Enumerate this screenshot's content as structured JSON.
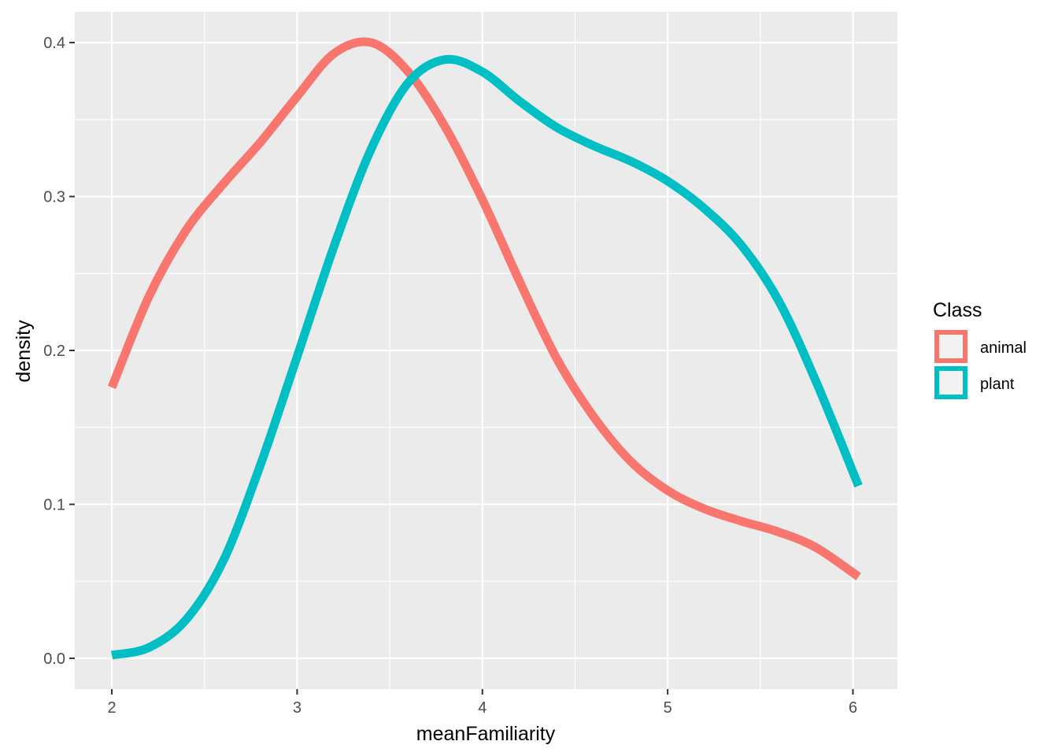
{
  "chart_data": {
    "type": "line",
    "xlabel": "meanFamiliarity",
    "ylabel": "density",
    "xlim": [
      1.8,
      6.24
    ],
    "ylim": [
      -0.02,
      0.42
    ],
    "x_ticks": [
      2,
      3,
      4,
      5,
      6
    ],
    "x_tick_labels": [
      "2",
      "3",
      "4",
      "5",
      "6"
    ],
    "y_ticks": [
      0.0,
      0.1,
      0.2,
      0.3,
      0.4
    ],
    "y_tick_labels": [
      "0.0",
      "0.1",
      "0.2",
      "0.3",
      "0.4"
    ],
    "grid": true,
    "legend": {
      "title": "Class",
      "position": "right"
    },
    "series": [
      {
        "name": "animal",
        "color": "#F8766D",
        "x": [
          2.0,
          2.2,
          2.4,
          2.6,
          2.8,
          3.0,
          3.2,
          3.4,
          3.6,
          3.8,
          4.0,
          4.2,
          4.4,
          4.6,
          4.8,
          5.0,
          5.2,
          5.4,
          5.6,
          5.8,
          6.03
        ],
        "y": [
          0.176,
          0.235,
          0.278,
          0.308,
          0.335,
          0.365,
          0.393,
          0.4,
          0.381,
          0.345,
          0.298,
          0.245,
          0.195,
          0.157,
          0.128,
          0.109,
          0.097,
          0.089,
          0.082,
          0.072,
          0.053
        ]
      },
      {
        "name": "plant",
        "color": "#00BFC4",
        "x": [
          2.0,
          2.2,
          2.4,
          2.6,
          2.8,
          3.0,
          3.2,
          3.4,
          3.6,
          3.8,
          4.0,
          4.2,
          4.4,
          4.6,
          4.8,
          5.0,
          5.2,
          5.4,
          5.6,
          5.8,
          6.03
        ],
        "y": [
          0.002,
          0.007,
          0.025,
          0.063,
          0.125,
          0.196,
          0.268,
          0.331,
          0.374,
          0.389,
          0.381,
          0.362,
          0.345,
          0.333,
          0.323,
          0.31,
          0.292,
          0.268,
          0.232,
          0.18,
          0.112
        ]
      }
    ]
  }
}
